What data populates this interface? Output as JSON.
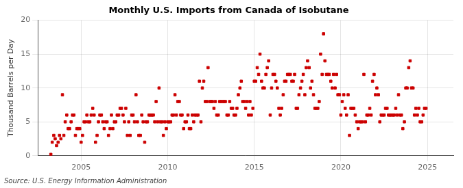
{
  "chart_data": {
    "type": "scatter",
    "title": "Monthly U.S. Imports from Canada of Isobutane",
    "ylabel": "Thousand Barrels per Day",
    "annotations": [
      "Source: U.S. Energy Information Administration"
    ],
    "color": "#cc0000",
    "marker": "square",
    "grid": true,
    "xlim": [
      2002.5,
      2026.5
    ],
    "xticks": [
      2005,
      2010,
      2015,
      2020,
      2025
    ],
    "ylim": [
      0,
      20
    ],
    "yticks": [
      0,
      5,
      10,
      15,
      20
    ],
    "x": [
      2003.25,
      2003.33,
      2003.42,
      2003.5,
      2003.58,
      2003.67,
      2003.75,
      2003.83,
      2003.92,
      2004.0,
      2004.08,
      2004.17,
      2004.25,
      2004.33,
      2004.42,
      2004.5,
      2004.58,
      2004.67,
      2004.75,
      2004.83,
      2004.92,
      2005.0,
      2005.08,
      2005.17,
      2005.25,
      2005.33,
      2005.42,
      2005.5,
      2005.58,
      2005.67,
      2005.75,
      2005.83,
      2005.92,
      2006.0,
      2006.08,
      2006.17,
      2006.25,
      2006.33,
      2006.42,
      2006.5,
      2006.58,
      2006.67,
      2006.75,
      2006.83,
      2006.92,
      2007.0,
      2007.08,
      2007.17,
      2007.25,
      2007.33,
      2007.42,
      2007.5,
      2007.58,
      2007.67,
      2007.75,
      2007.83,
      2007.92,
      2008.0,
      2008.08,
      2008.17,
      2008.25,
      2008.33,
      2008.42,
      2008.5,
      2008.58,
      2008.67,
      2008.75,
      2008.83,
      2008.92,
      2009.0,
      2009.08,
      2009.17,
      2009.25,
      2009.33,
      2009.42,
      2009.5,
      2009.58,
      2009.67,
      2009.75,
      2009.83,
      2009.92,
      2010.0,
      2010.08,
      2010.17,
      2010.25,
      2010.33,
      2010.42,
      2010.5,
      2010.58,
      2010.67,
      2010.75,
      2010.83,
      2010.92,
      2011.0,
      2011.08,
      2011.17,
      2011.25,
      2011.33,
      2011.42,
      2011.5,
      2011.58,
      2011.67,
      2011.75,
      2011.83,
      2011.92,
      2012.0,
      2012.08,
      2012.17,
      2012.25,
      2012.33,
      2012.42,
      2012.5,
      2012.58,
      2012.67,
      2012.75,
      2012.83,
      2012.92,
      2013.0,
      2013.08,
      2013.17,
      2013.25,
      2013.33,
      2013.42,
      2013.5,
      2013.58,
      2013.67,
      2013.75,
      2013.83,
      2013.92,
      2014.0,
      2014.08,
      2014.17,
      2014.25,
      2014.33,
      2014.42,
      2014.5,
      2014.58,
      2014.67,
      2014.75,
      2014.83,
      2014.92,
      2015.0,
      2015.08,
      2015.17,
      2015.25,
      2015.33,
      2015.42,
      2015.5,
      2015.58,
      2015.67,
      2015.75,
      2015.83,
      2015.92,
      2016.0,
      2016.08,
      2016.17,
      2016.25,
      2016.33,
      2016.42,
      2016.5,
      2016.58,
      2016.67,
      2016.75,
      2016.83,
      2016.92,
      2017.0,
      2017.08,
      2017.17,
      2017.25,
      2017.33,
      2017.42,
      2017.5,
      2017.58,
      2017.67,
      2017.75,
      2017.83,
      2017.92,
      2018.0,
      2018.08,
      2018.17,
      2018.25,
      2018.33,
      2018.42,
      2018.5,
      2018.58,
      2018.67,
      2018.75,
      2018.83,
      2018.92,
      2019.0,
      2019.08,
      2019.17,
      2019.25,
      2019.33,
      2019.42,
      2019.5,
      2019.58,
      2019.67,
      2019.75,
      2019.83,
      2019.92,
      2020.0,
      2020.08,
      2020.17,
      2020.25,
      2020.33,
      2020.42,
      2020.5,
      2020.58,
      2020.67,
      2020.75,
      2020.83,
      2020.92,
      2021.0,
      2021.08,
      2021.17,
      2021.25,
      2021.33,
      2021.42,
      2021.5,
      2021.58,
      2021.67,
      2021.75,
      2021.83,
      2021.92,
      2022.0,
      2022.08,
      2022.17,
      2022.25,
      2022.33,
      2022.42,
      2022.5,
      2022.58,
      2022.67,
      2022.75,
      2022.83,
      2022.92,
      2023.0,
      2023.08,
      2023.17,
      2023.25,
      2023.33,
      2023.42,
      2023.5,
      2023.58,
      2023.67,
      2023.75,
      2023.83,
      2023.92,
      2024.0,
      2024.08,
      2024.17,
      2024.25,
      2024.33,
      2024.42,
      2024.5,
      2024.58,
      2024.67,
      2024.75,
      2024.83,
      2024.92
    ],
    "values": [
      0.2,
      2.0,
      3.0,
      2.5,
      1.5,
      2.0,
      3.0,
      2.5,
      9.0,
      3.0,
      5.0,
      6.0,
      4.0,
      4.0,
      5.0,
      6.0,
      6.0,
      3.0,
      4.0,
      4.0,
      4.0,
      2.0,
      3.0,
      5.0,
      5.0,
      6.0,
      5.0,
      5.0,
      6.0,
      7.0,
      6.0,
      2.0,
      3.0,
      5.0,
      6.0,
      6.0,
      5.0,
      4.0,
      5.0,
      5.0,
      3.0,
      4.0,
      6.0,
      4.0,
      5.0,
      5.0,
      6.0,
      6.0,
      7.0,
      7.0,
      6.0,
      5.0,
      7.0,
      3.0,
      5.0,
      3.0,
      6.0,
      6.0,
      5.0,
      9.0,
      5.0,
      3.0,
      3.0,
      6.0,
      5.0,
      2.0,
      5.0,
      5.0,
      6.0,
      6.0,
      6.0,
      6.0,
      5.0,
      8.0,
      5.0,
      10.0,
      5.0,
      5.0,
      3.0,
      5.0,
      4.0,
      5.0,
      5.0,
      5.0,
      6.0,
      6.0,
      9.0,
      6.0,
      8.0,
      8.0,
      6.0,
      6.0,
      4.0,
      5.0,
      5.0,
      6.0,
      4.0,
      4.0,
      6.0,
      5.0,
      6.0,
      6.0,
      6.0,
      11.0,
      5.0,
      10.0,
      11.0,
      8.0,
      8.0,
      13.0,
      8.0,
      8.0,
      8.0,
      7.0,
      8.0,
      6.0,
      6.0,
      8.0,
      8.0,
      8.0,
      8.0,
      8.0,
      6.0,
      6.0,
      8.0,
      7.0,
      7.0,
      6.0,
      6.0,
      7.0,
      9.0,
      10.0,
      11.0,
      8.0,
      8.0,
      7.0,
      8.0,
      6.0,
      8.0,
      6.0,
      7.0,
      11.0,
      11.0,
      13.0,
      12.0,
      15.0,
      11.0,
      10.0,
      10.0,
      12.0,
      13.0,
      14.0,
      6.0,
      10.0,
      12.0,
      12.0,
      11.0,
      10.0,
      7.0,
      6.0,
      7.0,
      9.0,
      11.0,
      11.0,
      12.0,
      12.0,
      12.0,
      11.0,
      11.0,
      12.0,
      7.0,
      7.0,
      9.0,
      10.0,
      11.0,
      12.0,
      9.0,
      13.0,
      14.0,
      13.0,
      10.0,
      11.0,
      9.0,
      7.0,
      7.0,
      7.0,
      8.0,
      15.0,
      12.0,
      18.0,
      14.0,
      12.0,
      12.0,
      12.0,
      11.0,
      10.0,
      12.0,
      10.0,
      12.0,
      9.0,
      9.0,
      6.0,
      8.0,
      9.0,
      7.0,
      6.0,
      9.0,
      3.0,
      7.0,
      7.0,
      7.0,
      6.0,
      5.0,
      4.0,
      5.0,
      5.0,
      5.0,
      12.0,
      5.0,
      6.0,
      6.0,
      7.0,
      6.0,
      11.0,
      12.0,
      9.0,
      10.0,
      9.0,
      5.0,
      6.0,
      6.0,
      6.0,
      7.0,
      7.0,
      6.0,
      6.0,
      6.0,
      6.0,
      6.0,
      7.0,
      6.0,
      9.0,
      6.0,
      6.0,
      4.0,
      5.0,
      10.0,
      10.0,
      13.0,
      14.0,
      10.0,
      10.0,
      6.0,
      7.0,
      6.0,
      7.0,
      5.0,
      5.0,
      6.0,
      7.0,
      7.0
    ]
  }
}
